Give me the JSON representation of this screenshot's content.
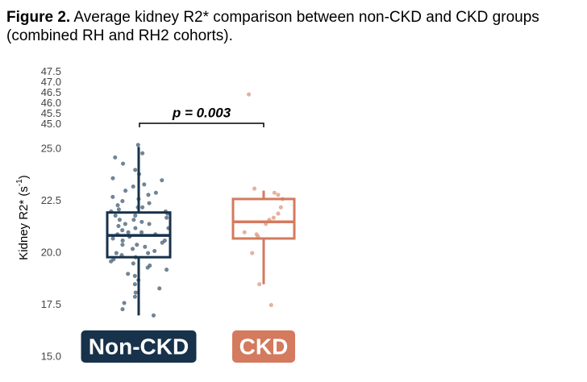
{
  "chart_data": {
    "type": "box",
    "title_label": "Figure 2.",
    "title": "Average kidney R2* comparison between non-CKD and CKD groups (combined RH and RH2 cohorts).",
    "ylabel": "Kidney R2* (s",
    "ylabel_sup": "-1",
    "ylabel_end": ")",
    "annotation": "p = 0.003",
    "ylim": [
      15,
      47.5
    ],
    "ybreak": [
      25.5,
      44.8
    ],
    "yticks": [
      {
        "value": 15,
        "label": "15.0"
      },
      17.5,
      {
        "value": 20,
        "label": "20.0"
      },
      22.5,
      {
        "value": 25,
        "label": "25.0"
      },
      {
        "value": 45,
        "label": "45.0"
      },
      45.5,
      {
        "value": 46,
        "label": "46.0"
      },
      46.5,
      {
        "value": 47,
        "label": "47.0"
      },
      47.5
    ],
    "series": [
      {
        "name": "Non-CKD",
        "color": "#17324a",
        "point_color": "#5a7186",
        "min": 17.0,
        "q1": 19.8,
        "median": 20.85,
        "q3": 21.95,
        "max": 25.1,
        "points": [
          25.2,
          24.8,
          24.6,
          24.3,
          24.0,
          23.8,
          23.6,
          23.5,
          23.3,
          23.2,
          23.0,
          22.9,
          22.8,
          22.7,
          22.6,
          22.5,
          22.4,
          22.3,
          22.2,
          22.2,
          22.1,
          22.0,
          22.0,
          21.9,
          21.8,
          21.8,
          21.7,
          21.6,
          21.6,
          21.5,
          21.4,
          21.4,
          21.3,
          21.2,
          21.2,
          21.1,
          21.0,
          21.0,
          20.9,
          20.9,
          20.8,
          20.8,
          20.7,
          20.6,
          20.6,
          20.5,
          20.4,
          20.4,
          20.3,
          20.2,
          20.1,
          20.0,
          20.0,
          19.9,
          19.8,
          19.7,
          19.6,
          19.5,
          19.4,
          19.3,
          19.2,
          19.0,
          18.9,
          18.7,
          18.5,
          18.3,
          18.1,
          17.9,
          17.6,
          17.3,
          17.0
        ]
      },
      {
        "name": "CKD",
        "color": "#d47a5e",
        "point_color": "#e0a78f",
        "min": 18.5,
        "q1": 20.7,
        "median": 21.5,
        "q3": 22.6,
        "max": 23.0,
        "points": [
          46.45,
          23.1,
          22.9,
          22.8,
          22.6,
          22.2,
          21.9,
          21.7,
          21.6,
          21.4,
          21.0,
          20.9,
          20.8,
          20.0,
          18.5,
          17.5
        ]
      }
    ]
  }
}
